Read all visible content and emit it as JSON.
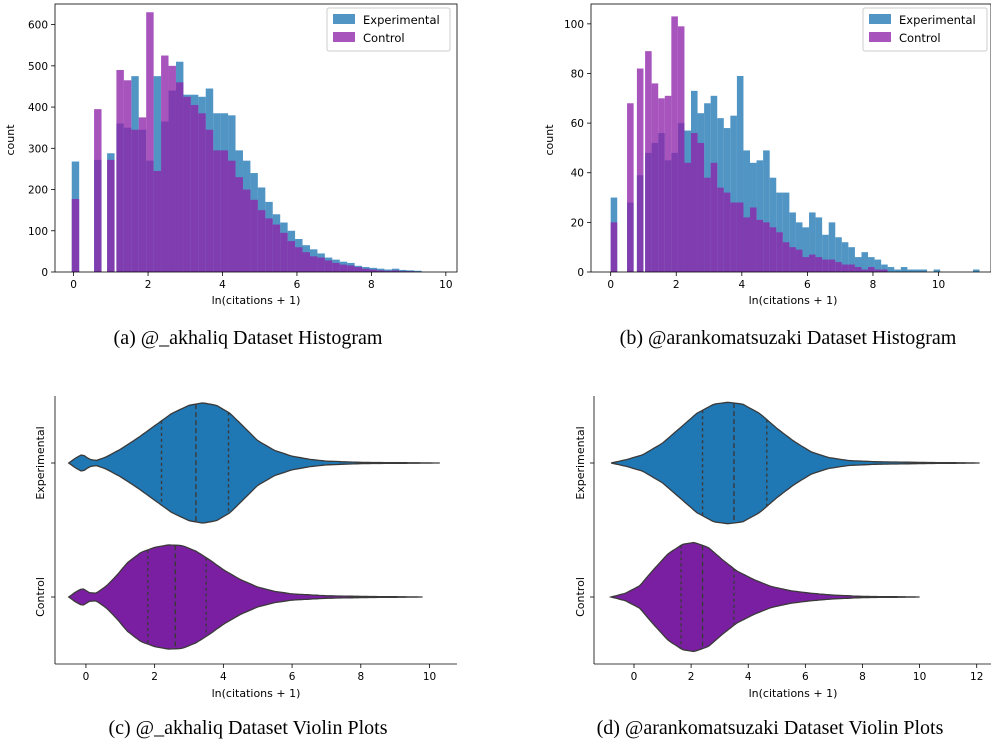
{
  "colors": {
    "experimental": "#1f77b4",
    "control": "#7b1fa2",
    "axis": "#000000",
    "violin_edge": "#3a3a3a"
  },
  "chart_data": [
    {
      "type": "bar",
      "id": "a",
      "subtype": "histogram-overlay",
      "caption": "(a) @_akhaliq Dataset Histogram",
      "xlabel": "ln(citations + 1)",
      "ylabel": "count",
      "xlim": [
        -0.5,
        10.3
      ],
      "ylim": [
        0,
        650
      ],
      "xticks": [
        0,
        2,
        4,
        6,
        8,
        10
      ],
      "yticks": [
        0,
        100,
        200,
        300,
        400,
        500,
        600
      ],
      "bin_start": 0,
      "bin_width": 0.2,
      "legend": {
        "position": "top-right"
      },
      "series": [
        {
          "name": "Experimental",
          "color": "#1f77b4",
          "alpha": 0.78,
          "values": [
            268,
            0,
            0,
            0,
            0,
            0,
            0,
            0,
            0,
            0,
            0,
            0,
            0,
            0,
            0,
            0,
            0,
            0,
            0,
            0,
            0,
            0,
            0,
            0,
            0,
            0,
            0,
            0,
            0,
            0,
            0,
            0,
            0,
            0,
            0,
            0,
            0,
            0,
            0,
            0,
            0,
            0,
            0,
            0,
            0,
            0,
            0,
            0,
            0,
            0,
            0
          ]
        },
        {
          "name": "Control",
          "color": "#8e24aa",
          "alpha": 0.78,
          "values": [
            177,
            0,
            0,
            0,
            0,
            0,
            0,
            0,
            0,
            0,
            0,
            0,
            0,
            0,
            0,
            0,
            0,
            0,
            0,
            0,
            0,
            0,
            0,
            0,
            0,
            0,
            0,
            0,
            0,
            0,
            0,
            0,
            0,
            0,
            0,
            0,
            0,
            0,
            0,
            0,
            0,
            0,
            0,
            0,
            0,
            0,
            0,
            0,
            0,
            0,
            0
          ]
        }
      ],
      "bars": {
        "x": [
          0.05,
          0.65,
          1.0,
          1.25,
          1.45,
          1.65,
          1.85,
          2.05,
          2.25,
          2.45,
          2.65,
          2.85,
          3.05,
          3.25,
          3.45,
          3.65,
          3.85,
          4.05,
          4.25,
          4.45,
          4.65,
          4.85,
          5.05,
          5.25,
          5.45,
          5.65,
          5.85,
          6.05,
          6.25,
          6.45,
          6.65,
          6.85,
          7.05,
          7.25,
          7.45,
          7.65,
          7.85,
          8.05,
          8.25,
          8.45,
          8.65,
          8.85,
          9.05,
          9.25
        ],
        "exp": [
          0,
          272,
          288,
          360,
          350,
          475,
          345,
          270,
          475,
          365,
          440,
          510,
          430,
          430,
          425,
          445,
          385,
          385,
          380,
          295,
          270,
          240,
          205,
          170,
          140,
          120,
          100,
          80,
          65,
          55,
          45,
          35,
          30,
          25,
          22,
          15,
          12,
          10,
          8,
          6,
          8,
          5,
          4,
          3
        ],
        "ctl": [
          0,
          395,
          272,
          490,
          465,
          345,
          375,
          630,
          245,
          525,
          500,
          460,
          425,
          405,
          385,
          345,
          295,
          295,
          270,
          230,
          200,
          175,
          150,
          130,
          115,
          95,
          75,
          60,
          48,
          38,
          35,
          28,
          22,
          18,
          16,
          12,
          8,
          6,
          4,
          3,
          4,
          2,
          2,
          1
        ]
      }
    },
    {
      "type": "bar",
      "id": "b",
      "subtype": "histogram-overlay",
      "caption": "(b) @arankomatsuzaki Dataset Histogram",
      "xlabel": "ln(citations + 1)",
      "ylabel": "count",
      "xlim": [
        -0.6,
        11.6
      ],
      "ylim": [
        0,
        108
      ],
      "xticks": [
        0,
        2,
        4,
        6,
        8,
        10
      ],
      "yticks": [
        0,
        20,
        40,
        60,
        80,
        100
      ],
      "legend": {
        "position": "top-right"
      },
      "series": [
        {
          "name": "Experimental",
          "color": "#1f77b4",
          "alpha": 0.78
        },
        {
          "name": "Control",
          "color": "#8e24aa",
          "alpha": 0.78
        }
      ],
      "bars": {
        "x": [
          0.1,
          0.6,
          0.9,
          1.15,
          1.35,
          1.55,
          1.75,
          1.95,
          2.15,
          2.35,
          2.55,
          2.75,
          2.95,
          3.15,
          3.35,
          3.55,
          3.75,
          3.95,
          4.15,
          4.35,
          4.55,
          4.75,
          4.95,
          5.15,
          5.35,
          5.55,
          5.75,
          5.95,
          6.15,
          6.35,
          6.55,
          6.75,
          6.95,
          7.15,
          7.35,
          7.55,
          7.75,
          7.95,
          8.15,
          8.35,
          8.55,
          8.75,
          8.95,
          9.15,
          9.35,
          9.55,
          9.75,
          9.95,
          10.15,
          10.35,
          10.55,
          10.75,
          10.95,
          11.15
        ],
        "exp": [
          30,
          28,
          39,
          48,
          52,
          56,
          45,
          48,
          60,
          57,
          73,
          64,
          68,
          71,
          62,
          58,
          63,
          79,
          49,
          44,
          45,
          49,
          38,
          32,
          32,
          24,
          20,
          18,
          24,
          22,
          15,
          20,
          14,
          12,
          10,
          6,
          8,
          6,
          5,
          3,
          2,
          1,
          2,
          1,
          1,
          1,
          0,
          1,
          0,
          0,
          0,
          0,
          0,
          1
        ],
        "ctl": [
          20,
          68,
          82,
          89,
          76,
          70,
          71,
          103,
          99,
          44,
          56,
          52,
          38,
          44,
          34,
          32,
          28,
          28,
          22,
          26,
          21,
          20,
          18,
          16,
          12,
          10,
          9,
          6,
          7,
          6,
          5,
          5,
          4,
          3,
          3,
          2,
          1,
          2,
          1,
          1,
          0,
          0,
          0,
          0,
          0,
          0,
          0,
          0,
          0,
          0,
          0,
          0,
          0,
          0
        ]
      }
    },
    {
      "type": "violin",
      "id": "c",
      "caption": "(c) @_akhaliq Dataset Violin Plots",
      "xlabel": "ln(citations + 1)",
      "xlim": [
        -0.9,
        10.8
      ],
      "xticks": [
        0,
        2,
        4,
        6,
        8,
        10
      ],
      "categories": [
        "Experimental",
        "Control"
      ],
      "series": [
        {
          "name": "Experimental",
          "color": "#1f77b4",
          "quartiles": [
            2.2,
            3.2,
            4.15
          ],
          "range": [
            -0.5,
            10.3
          ],
          "profile": [
            [
              -0.5,
              0.0
            ],
            [
              -0.3,
              0.08
            ],
            [
              -0.1,
              0.14
            ],
            [
              0.1,
              0.06
            ],
            [
              0.3,
              0.04
            ],
            [
              0.6,
              0.1
            ],
            [
              1.0,
              0.22
            ],
            [
              1.5,
              0.4
            ],
            [
              2.0,
              0.6
            ],
            [
              2.5,
              0.8
            ],
            [
              3.0,
              0.93
            ],
            [
              3.4,
              0.97
            ],
            [
              3.8,
              0.93
            ],
            [
              4.2,
              0.8
            ],
            [
              4.6,
              0.58
            ],
            [
              5.0,
              0.36
            ],
            [
              5.5,
              0.2
            ],
            [
              6.0,
              0.11
            ],
            [
              6.5,
              0.06
            ],
            [
              7.0,
              0.03
            ],
            [
              8.0,
              0.01
            ],
            [
              10.3,
              0.0
            ]
          ]
        },
        {
          "name": "Control",
          "color": "#7b1fa2",
          "quartiles": [
            1.8,
            2.6,
            3.5
          ],
          "range": [
            -0.5,
            9.8
          ],
          "profile": [
            [
              -0.5,
              0.0
            ],
            [
              -0.3,
              0.08
            ],
            [
              -0.1,
              0.14
            ],
            [
              0.1,
              0.07
            ],
            [
              0.3,
              0.06
            ],
            [
              0.6,
              0.18
            ],
            [
              0.9,
              0.35
            ],
            [
              1.2,
              0.55
            ],
            [
              1.6,
              0.72
            ],
            [
              2.0,
              0.8
            ],
            [
              2.4,
              0.84
            ],
            [
              2.8,
              0.83
            ],
            [
              3.2,
              0.74
            ],
            [
              3.6,
              0.6
            ],
            [
              4.0,
              0.44
            ],
            [
              4.5,
              0.28
            ],
            [
              5.0,
              0.16
            ],
            [
              5.5,
              0.09
            ],
            [
              6.0,
              0.05
            ],
            [
              7.0,
              0.02
            ],
            [
              8.0,
              0.01
            ],
            [
              9.8,
              0.0
            ]
          ]
        }
      ]
    },
    {
      "type": "violin",
      "id": "d",
      "caption": "(d) @arankomatsuzaki Dataset Violin Plots",
      "xlabel": "ln(citations + 1)",
      "xlim": [
        -1.4,
        12.5
      ],
      "xticks": [
        0,
        2,
        4,
        6,
        8,
        10,
        12
      ],
      "categories": [
        "Experimental",
        "Control"
      ],
      "series": [
        {
          "name": "Experimental",
          "color": "#1f77b4",
          "quartiles": [
            2.4,
            3.5,
            4.65
          ],
          "range": [
            -0.8,
            12.1
          ],
          "profile": [
            [
              -0.8,
              0.0
            ],
            [
              -0.3,
              0.05
            ],
            [
              0.3,
              0.13
            ],
            [
              1.0,
              0.32
            ],
            [
              1.6,
              0.56
            ],
            [
              2.2,
              0.8
            ],
            [
              2.8,
              0.95
            ],
            [
              3.3,
              0.98
            ],
            [
              3.8,
              0.95
            ],
            [
              4.4,
              0.8
            ],
            [
              5.0,
              0.56
            ],
            [
              5.6,
              0.35
            ],
            [
              6.2,
              0.18
            ],
            [
              6.8,
              0.09
            ],
            [
              7.5,
              0.04
            ],
            [
              8.5,
              0.02
            ],
            [
              10.0,
              0.01
            ],
            [
              12.1,
              0.0
            ]
          ]
        },
        {
          "name": "Control",
          "color": "#7b1fa2",
          "quartiles": [
            1.65,
            2.4,
            3.5
          ],
          "range": [
            -0.8,
            10.0
          ],
          "profile": [
            [
              -0.8,
              0.0
            ],
            [
              -0.3,
              0.06
            ],
            [
              0.2,
              0.18
            ],
            [
              0.7,
              0.45
            ],
            [
              1.2,
              0.7
            ],
            [
              1.7,
              0.85
            ],
            [
              2.1,
              0.88
            ],
            [
              2.6,
              0.8
            ],
            [
              3.1,
              0.6
            ],
            [
              3.6,
              0.42
            ],
            [
              4.2,
              0.28
            ],
            [
              4.8,
              0.17
            ],
            [
              5.5,
              0.1
            ],
            [
              6.2,
              0.06
            ],
            [
              7.0,
              0.03
            ],
            [
              8.0,
              0.01
            ],
            [
              10.0,
              0.0
            ]
          ]
        }
      ]
    }
  ]
}
